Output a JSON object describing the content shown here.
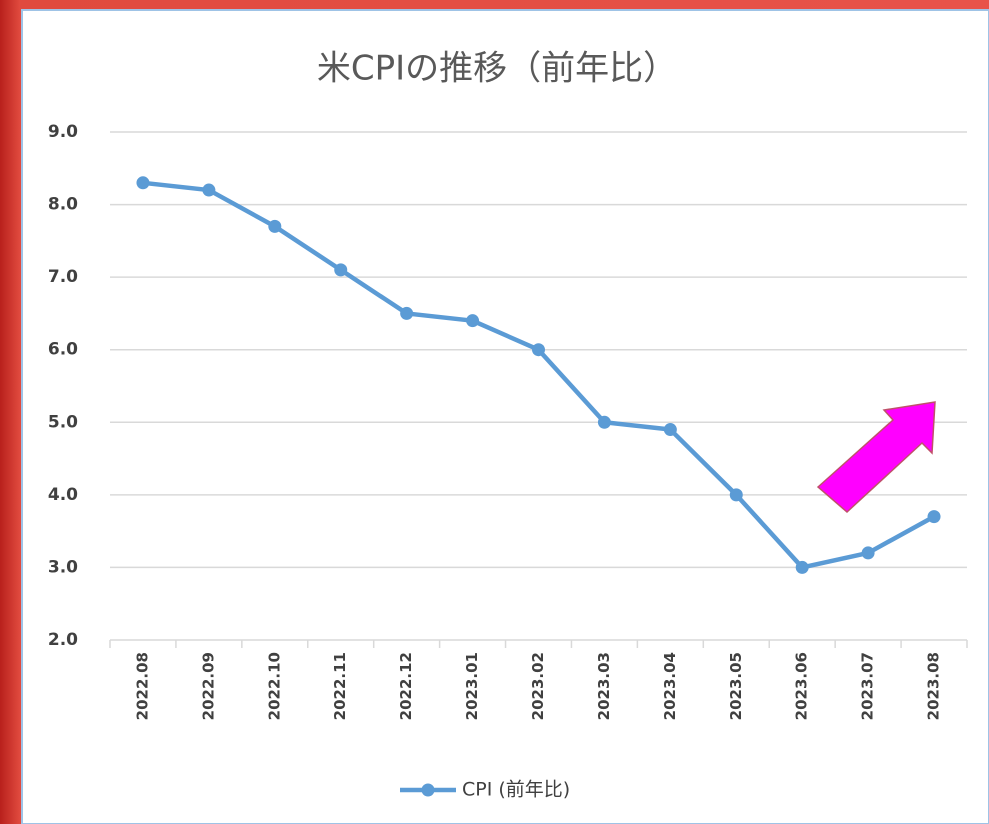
{
  "chart_data": {
    "type": "line",
    "title": "米CPIの推移（前年比）",
    "categories": [
      "2022.08",
      "2022.09",
      "2022.10",
      "2022.11",
      "2022.12",
      "2023.01",
      "2023.02",
      "2023.03",
      "2023.04",
      "2023.05",
      "2023.06",
      "2023.07",
      "2023.08"
    ],
    "series": [
      {
        "name": "CPI (前年比)",
        "color": "#5b9bd5",
        "values": [
          8.3,
          8.2,
          7.7,
          7.1,
          6.5,
          6.4,
          6.0,
          5.0,
          4.9,
          4.0,
          3.0,
          3.2,
          3.7
        ]
      }
    ],
    "ylim": [
      2,
      9
    ],
    "yticks": [
      {
        "value": 2,
        "label": "2.0"
      },
      {
        "value": 3,
        "label": "3.0"
      },
      {
        "value": 4,
        "label": "4.0"
      },
      {
        "value": 5,
        "label": "5.0"
      },
      {
        "value": 6,
        "label": "6.0"
      },
      {
        "value": 7,
        "label": "7.0"
      },
      {
        "value": 8,
        "label": "8.0"
      },
      {
        "value": 9,
        "label": "9.0"
      }
    ],
    "grid": true,
    "legend": "bottom"
  }
}
